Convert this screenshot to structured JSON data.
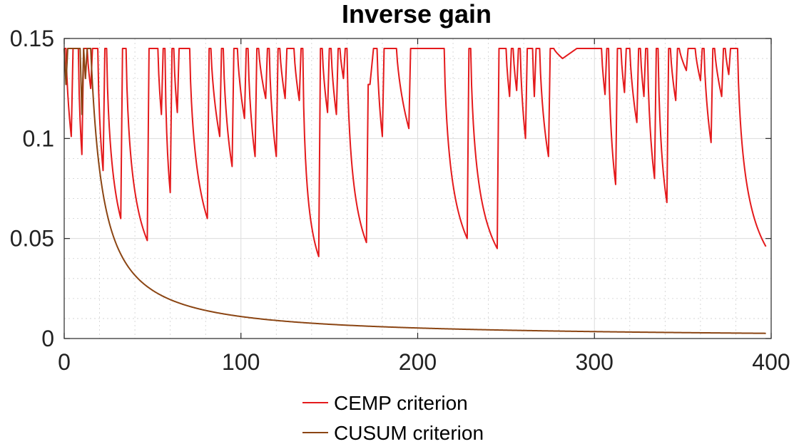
{
  "chart_data": {
    "type": "line",
    "title": "Inverse gain",
    "xlabel": "",
    "ylabel": "",
    "xlim": [
      0,
      400
    ],
    "ylim": [
      0,
      0.15
    ],
    "x_ticks": [
      0,
      100,
      200,
      300,
      400
    ],
    "x_tick_labels": [
      "0",
      "100",
      "200",
      "300",
      "400"
    ],
    "y_ticks": [
      0,
      0.05,
      0.1,
      0.15
    ],
    "y_tick_labels": [
      "0",
      "0.05",
      "0.1",
      "0.15"
    ],
    "grid": true,
    "minor_grid": true,
    "legend_position": "bottom-center",
    "series": [
      {
        "name": "CEMP criterion",
        "color": "#e41a1c",
        "model": "reset_decay",
        "cap": 0.145,
        "start": [
          0,
          0.145
        ],
        "ramp_fraction": 0.8,
        "segments": [
          [
            1,
            0.145
          ],
          [
            4,
            0.101
          ],
          [
            5,
            0.145
          ],
          [
            8,
            0.145
          ],
          [
            10,
            0.092
          ],
          [
            11,
            0.145
          ],
          [
            13,
            0.145
          ],
          [
            15,
            0.125
          ],
          [
            16,
            0.145
          ],
          [
            19,
            0.145
          ],
          [
            22,
            0.084
          ],
          [
            23,
            0.145
          ],
          [
            24,
            0.145
          ],
          [
            32,
            0.06
          ],
          [
            33,
            0.145
          ],
          [
            35,
            0.145
          ],
          [
            47,
            0.049
          ],
          [
            48,
            0.145
          ],
          [
            53,
            0.145
          ],
          [
            55,
            0.112
          ],
          [
            56,
            0.145
          ],
          [
            57,
            0.145
          ],
          [
            60,
            0.073
          ],
          [
            61,
            0.145
          ],
          [
            62,
            0.145
          ],
          [
            64,
            0.113
          ],
          [
            65,
            0.145
          ],
          [
            71,
            0.145
          ],
          [
            81,
            0.06
          ],
          [
            82,
            0.145
          ],
          [
            83,
            0.145
          ],
          [
            88,
            0.101
          ],
          [
            89,
            0.145
          ],
          [
            90,
            0.145
          ],
          [
            95,
            0.086
          ],
          [
            96,
            0.145
          ],
          [
            98,
            0.145
          ],
          [
            102,
            0.11
          ],
          [
            103,
            0.145
          ],
          [
            104,
            0.145
          ],
          [
            108,
            0.091
          ],
          [
            109,
            0.145
          ],
          [
            110,
            0.145
          ],
          [
            114,
            0.12
          ],
          [
            115,
            0.145
          ],
          [
            116,
            0.145
          ],
          [
            120,
            0.091
          ],
          [
            121,
            0.145
          ],
          [
            122,
            0.145
          ],
          [
            125,
            0.12
          ],
          [
            126,
            0.145
          ],
          [
            130,
            0.145
          ],
          [
            133,
            0.119
          ],
          [
            134,
            0.145
          ],
          [
            135,
            0.145
          ],
          [
            144,
            0.041
          ],
          [
            145,
            0.145
          ],
          [
            146,
            0.145
          ],
          [
            149,
            0.113
          ],
          [
            150,
            0.145
          ],
          [
            151,
            0.145
          ],
          [
            154,
            0.112
          ],
          [
            155,
            0.145
          ],
          [
            156,
            0.145
          ],
          [
            158,
            0.13
          ],
          [
            159,
            0.145
          ],
          [
            160,
            0.145
          ],
          [
            171,
            0.048
          ],
          [
            172,
            0.127
          ],
          [
            173,
            0.127
          ],
          [
            175,
            0.145
          ],
          [
            177,
            0.145
          ],
          [
            180,
            0.101
          ],
          [
            181,
            0.145
          ],
          [
            183,
            0.145
          ],
          [
            188,
            0.145
          ],
          [
            195,
            0.105
          ],
          [
            196,
            0.145
          ],
          [
            215,
            0.145
          ],
          [
            228,
            0.05
          ],
          [
            229,
            0.145
          ],
          [
            230,
            0.145
          ],
          [
            245,
            0.045
          ],
          [
            246,
            0.145
          ],
          [
            250,
            0.145
          ],
          [
            252,
            0.121
          ],
          [
            253,
            0.145
          ],
          [
            254,
            0.145
          ],
          [
            256,
            0.124
          ],
          [
            257,
            0.145
          ],
          [
            258,
            0.145
          ],
          [
            261,
            0.1
          ],
          [
            262,
            0.145
          ],
          [
            265,
            0.145
          ],
          [
            266,
            0.121
          ],
          [
            267,
            0.145
          ],
          [
            269,
            0.145
          ],
          [
            274,
            0.091
          ],
          [
            275,
            0.145
          ],
          [
            277,
            0.145
          ],
          [
            282,
            0.14
          ],
          [
            290,
            0.145
          ],
          [
            304,
            0.145
          ],
          [
            306,
            0.122
          ],
          [
            307,
            0.145
          ],
          [
            308,
            0.145
          ],
          [
            312,
            0.077
          ],
          [
            313,
            0.145
          ],
          [
            315,
            0.145
          ],
          [
            317,
            0.123
          ],
          [
            318,
            0.145
          ],
          [
            320,
            0.145
          ],
          [
            324,
            0.108
          ],
          [
            325,
            0.145
          ],
          [
            326,
            0.145
          ],
          [
            328,
            0.121
          ],
          [
            329,
            0.145
          ],
          [
            330,
            0.145
          ],
          [
            334,
            0.08
          ],
          [
            335,
            0.145
          ],
          [
            336,
            0.145
          ],
          [
            341,
            0.068
          ],
          [
            342,
            0.145
          ],
          [
            343,
            0.145
          ],
          [
            346,
            0.119
          ],
          [
            347,
            0.145
          ],
          [
            348,
            0.145
          ],
          [
            352,
            0.134
          ],
          [
            353,
            0.145
          ],
          [
            357,
            0.145
          ],
          [
            360,
            0.129
          ],
          [
            361,
            0.145
          ],
          [
            362,
            0.145
          ],
          [
            366,
            0.098
          ],
          [
            367,
            0.145
          ],
          [
            368,
            0.145
          ],
          [
            372,
            0.121
          ],
          [
            373,
            0.145
          ],
          [
            374,
            0.145
          ],
          [
            376,
            0.132
          ],
          [
            377,
            0.145
          ],
          [
            381,
            0.145
          ],
          [
            397,
            0.046
          ]
        ]
      },
      {
        "name": "CUSUM criterion",
        "color": "#8b4513",
        "model": "inverse_decay",
        "cap": 0.145,
        "start_x": 15,
        "end_x": 397,
        "constant": 1.0,
        "offset": 0.0,
        "early_points": [
          [
            0,
            0.145
          ],
          [
            1,
            0.127
          ],
          [
            2,
            0.145
          ],
          [
            6,
            0.145
          ],
          [
            7,
            0.145
          ],
          [
            9,
            0.145
          ],
          [
            10,
            0.112
          ],
          [
            11,
            0.145
          ],
          [
            12,
            0.13
          ],
          [
            13,
            0.145
          ],
          [
            15,
            0.145
          ]
        ]
      }
    ]
  }
}
